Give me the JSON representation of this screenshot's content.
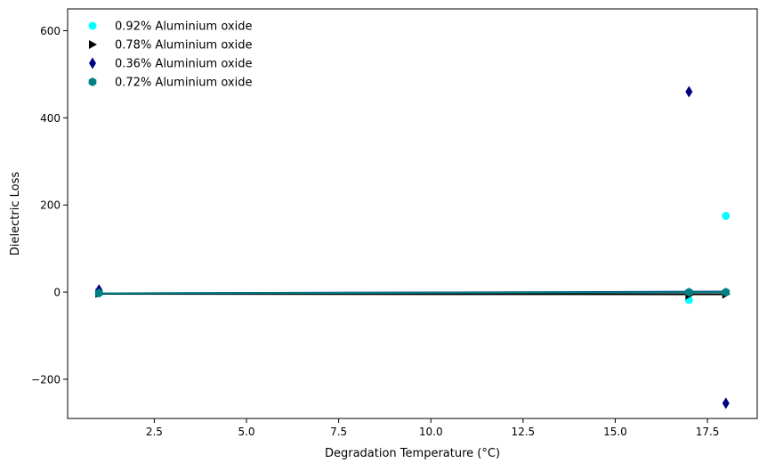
{
  "chart_data": {
    "type": "scatter",
    "title": "",
    "xlabel": "Degradation Temperature (°C)",
    "ylabel": "Dielectric Loss",
    "xlim": [
      0.15,
      18.85
    ],
    "ylim": [
      -290,
      650
    ],
    "x_ticks": [
      2.5,
      5.0,
      7.5,
      10.0,
      12.5,
      15.0,
      17.5
    ],
    "x_tick_labels": [
      "2.5",
      "5.0",
      "7.5",
      "10.0",
      "12.5",
      "15.0",
      "17.5"
    ],
    "y_ticks": [
      -200,
      0,
      200,
      400,
      600
    ],
    "y_tick_labels": [
      "−200",
      "0",
      "200",
      "400",
      "600"
    ],
    "grid": false,
    "legend_position": "top-left",
    "series": [
      {
        "name": "0.92% Aluminium oxide",
        "marker": "circle",
        "color": "#00ffff",
        "points": [
          [
            1,
            -3
          ],
          [
            17,
            -18
          ],
          [
            18,
            175
          ]
        ],
        "trend": [
          [
            1,
            -4
          ],
          [
            18,
            1
          ]
        ]
      },
      {
        "name": "0.78% Aluminium oxide",
        "marker": "triangle-right",
        "color": "#000000",
        "points": [
          [
            1,
            -3
          ],
          [
            17,
            -7
          ],
          [
            18,
            -5
          ]
        ],
        "trend": [
          [
            1,
            -4
          ],
          [
            18,
            -5
          ]
        ]
      },
      {
        "name": "0.36% Aluminium oxide",
        "marker": "thin-diamond",
        "color": "#000080",
        "points": [
          [
            1,
            5
          ],
          [
            17,
            460
          ],
          [
            18,
            -255
          ]
        ],
        "trend": [
          [
            1,
            -3
          ],
          [
            18,
            1
          ]
        ]
      },
      {
        "name": "0.72% Aluminium oxide",
        "marker": "hexagon",
        "color": "#008080",
        "points": [
          [
            1,
            -2
          ],
          [
            17,
            0
          ],
          [
            18,
            0
          ]
        ],
        "trend": [
          [
            1,
            -3
          ],
          [
            18,
            0
          ]
        ]
      }
    ]
  }
}
